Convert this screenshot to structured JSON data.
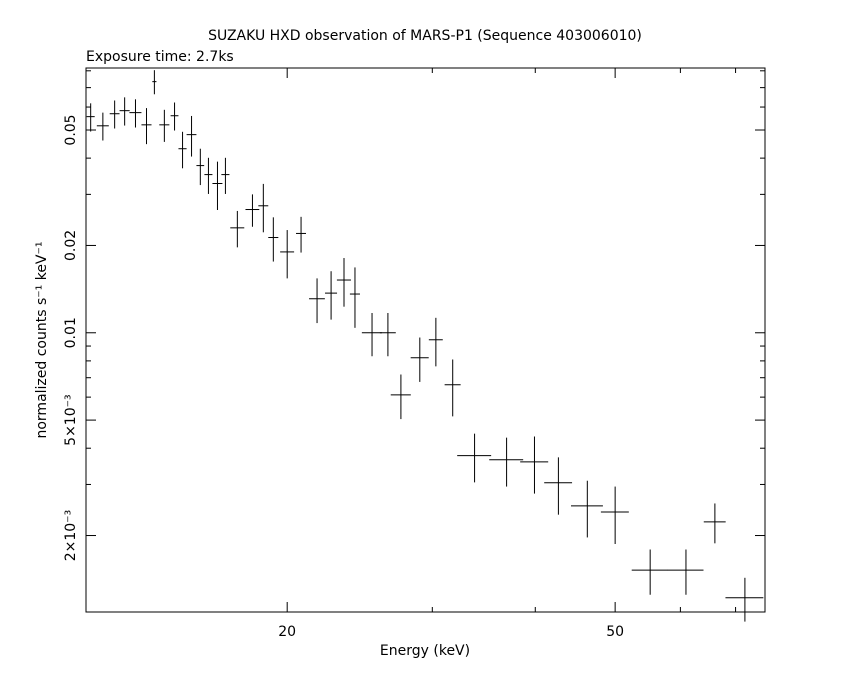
{
  "chart_data": {
    "type": "errorbar",
    "title": "SUZAKU HXD observation of MARS-P1 (Sequence 403006010)",
    "subtitle": "Exposure time: 2.7ks",
    "x_label": "Energy (keV)",
    "y_label": "normalized counts s⁻¹ keV⁻¹",
    "x_scale": "log",
    "y_scale": "log",
    "xlim": [
      11.4,
      76
    ],
    "ylim": [
      0.00109,
      0.0818
    ],
    "xticks": [
      20,
      50
    ],
    "x_minor_ticks": [
      30,
      40,
      60,
      70
    ],
    "yticks": [
      {
        "value": 0.002,
        "label": "2×10⁻³"
      },
      {
        "value": 0.005,
        "label": "5×10⁻³"
      },
      0.01,
      0.02,
      0.05
    ],
    "y_minor_ticks": [
      0.003,
      0.004,
      0.006,
      0.007,
      0.008,
      0.009,
      0.03,
      0.04,
      0.06,
      0.07,
      0.08
    ],
    "series": [
      {
        "color": "#000000",
        "x": [
          11.55,
          11.95,
          12.35,
          12.7,
          13.09,
          13.5,
          13.8,
          14.19,
          14.6,
          14.93,
          15.31,
          15.69,
          16.05,
          16.46,
          16.83,
          17.4,
          18.15,
          18.71,
          19.24,
          20.0,
          20.79,
          21.74,
          22.61,
          23.44,
          24.17,
          25.35,
          26.5,
          27.48,
          28.97,
          30.3,
          31.76,
          33.76,
          36.92,
          39.91,
          42.67,
          46.26,
          50.0,
          55.14,
          60.94,
          66.07,
          71.85
        ],
        "xerr": [
          0.13,
          0.2,
          0.17,
          0.18,
          0.22,
          0.19,
          0.08,
          0.2,
          0.16,
          0.17,
          0.21,
          0.17,
          0.18,
          0.23,
          0.19,
          0.34,
          0.35,
          0.26,
          0.27,
          0.39,
          0.29,
          0.48,
          0.38,
          0.46,
          0.34,
          0.71,
          0.59,
          0.77,
          0.73,
          0.59,
          0.71,
          1.6,
          1.75,
          1.56,
          1.66,
          2.06,
          1.95,
          2.77,
          3.06,
          2.02,
          3.8
        ],
        "values": [
          0.0556,
          0.0517,
          0.0569,
          0.0583,
          0.0574,
          0.0521,
          0.0734,
          0.0521,
          0.056,
          0.0431,
          0.0482,
          0.0377,
          0.0351,
          0.0327,
          0.0351,
          0.023,
          0.0266,
          0.0274,
          0.0213,
          0.019,
          0.022,
          0.0131,
          0.0137,
          0.0152,
          0.0136,
          0.01,
          0.01,
          0.00611,
          0.0082,
          0.00946,
          0.00662,
          0.00377,
          0.00365,
          0.00359,
          0.00304,
          0.00253,
          0.00241,
          0.00152,
          0.00152,
          0.00223,
          0.00122
        ],
        "yerr": [
          0.0062,
          0.0057,
          0.0063,
          0.0065,
          0.0064,
          0.0074,
          0.007,
          0.0066,
          0.0062,
          0.0062,
          0.0077,
          0.0054,
          0.005,
          0.0062,
          0.005,
          0.0033,
          0.0034,
          0.0052,
          0.0037,
          0.0036,
          0.0031,
          0.0023,
          0.0026,
          0.0029,
          0.0032,
          0.0017,
          0.0017,
          0.00107,
          0.00143,
          0.0018,
          0.00147,
          0.00072,
          0.0007,
          0.0008,
          0.00068,
          0.00056,
          0.00054,
          0.00027,
          0.00027,
          0.00035,
          0.00021
        ]
      }
    ]
  }
}
